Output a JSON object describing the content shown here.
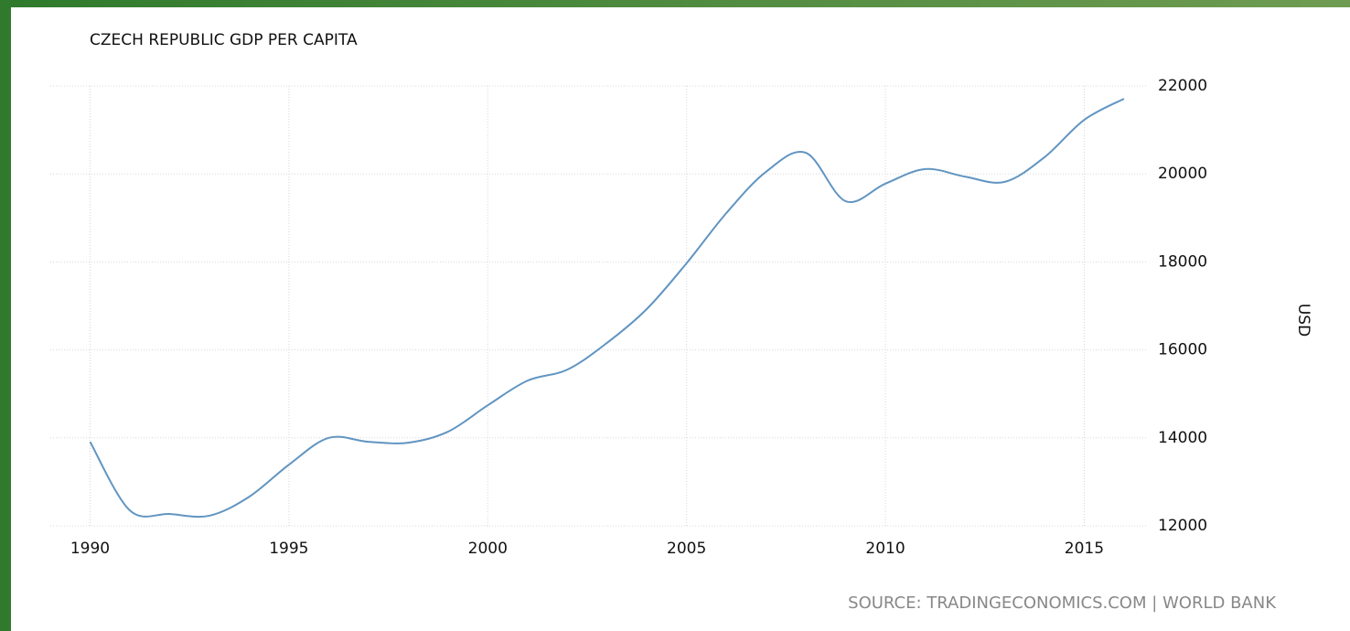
{
  "chart_data": {
    "type": "line",
    "title": "CZECH REPUBLIC GDP PER CAPITA",
    "y_label": "USD",
    "source": "SOURCE: TRADINGECONOMICS.COM | WORLD BANK",
    "x": [
      1990,
      1991,
      1992,
      1993,
      1994,
      1995,
      1996,
      1997,
      1998,
      1999,
      2000,
      2001,
      2002,
      2003,
      2004,
      2005,
      2006,
      2007,
      2008,
      2009,
      2010,
      2011,
      2012,
      2013,
      2014,
      2015,
      2016
    ],
    "values": [
      13910,
      12350,
      12270,
      12230,
      12660,
      13390,
      14000,
      13910,
      13890,
      14140,
      14740,
      15300,
      15550,
      16160,
      16930,
      17970,
      19110,
      20050,
      20480,
      19380,
      19780,
      20110,
      19940,
      19820,
      20380,
      21230,
      21710
    ],
    "color": "#6195c1",
    "xlim": [
      1989,
      2016.6
    ],
    "xticks": [
      1990,
      1995,
      2000,
      2005,
      2010,
      2015
    ],
    "ylim": [
      12000,
      22000
    ],
    "yticks": [
      12000,
      14000,
      16000,
      18000,
      20000,
      22000
    ],
    "grid": true
  }
}
